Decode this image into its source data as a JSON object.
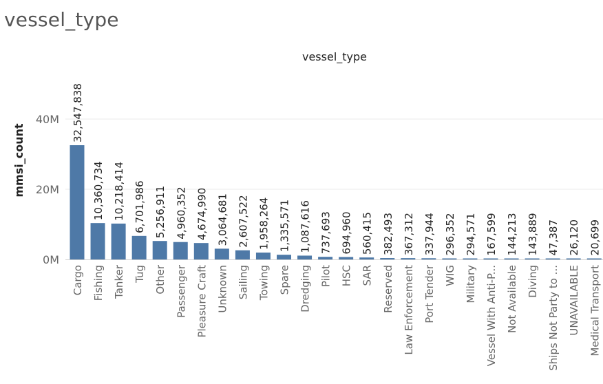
{
  "page": {
    "title": "vessel_type"
  },
  "chart_data": {
    "type": "bar",
    "title": "vessel_type",
    "xlabel": "",
    "ylabel": "mmsi_count",
    "ylim": [
      0,
      55000000
    ],
    "yticks": [
      0,
      20000000,
      40000000
    ],
    "ytick_labels": [
      "0M",
      "20M",
      "40M"
    ],
    "grid": true,
    "bar_color": "#4e79a7",
    "categories": [
      "Cargo",
      "Fishing",
      "Tanker",
      "Tug",
      "Other",
      "Passenger",
      "Pleasure Craft",
      "Unknown",
      "Sailing",
      "Towing",
      "Spare",
      "Dredging",
      "Pilot",
      "HSC",
      "SAR",
      "Reserved",
      "Law Enforcement",
      "Port Tender",
      "WIG",
      "Military",
      "Vessel With Anti-P...",
      "Not Available",
      "Diving",
      "Ships Not Party to ...",
      "UNAVAILABLE",
      "Medical Transport"
    ],
    "values": [
      32547838,
      10360734,
      10218414,
      6701986,
      5256911,
      4960352,
      4674990,
      3064681,
      2607522,
      1958264,
      1335571,
      1087616,
      737693,
      694960,
      560415,
      382493,
      367312,
      337944,
      296352,
      294571,
      167599,
      144213,
      143889,
      47387,
      26120,
      20699
    ],
    "value_labels": [
      "32,547,838",
      "10,360,734",
      "10,218,414",
      "6,701,986",
      "5,256,911",
      "4,960,352",
      "4,674,990",
      "3,064,681",
      "2,607,522",
      "1,958,264",
      "1,335,571",
      "1,087,616",
      "737,693",
      "694,960",
      "560,415",
      "382,493",
      "367,312",
      "337,944",
      "296,352",
      "294,571",
      "167,599",
      "144,213",
      "143,889",
      "47,387",
      "26,120",
      "20,699"
    ]
  }
}
